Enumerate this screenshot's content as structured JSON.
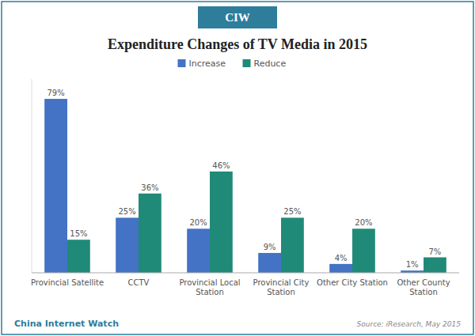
{
  "chart_data": {
    "type": "bar",
    "title": "Expenditure Changes of TV Media in 2015",
    "categories": [
      "Provincial Satellite",
      "CCTV",
      "Provincial Local\nStation",
      "Provincial City\nStation",
      "Other City Station",
      "Other County\nStation"
    ],
    "series": [
      {
        "name": "Increase",
        "color": "#4472C4",
        "values": [
          79,
          25,
          20,
          9,
          4,
          1
        ],
        "value_labels": [
          "79%",
          "25%",
          "20%",
          "9%",
          "4%",
          "1%"
        ]
      },
      {
        "name": "Reduce",
        "color": "#1F8A78",
        "values": [
          15,
          36,
          46,
          25,
          20,
          7
        ],
        "value_labels": [
          "15%",
          "36%",
          "46%",
          "25%",
          "20%",
          "7%"
        ]
      }
    ],
    "ylim": [
      0,
      88
    ],
    "grid": false,
    "legend": "top",
    "data_labels": true,
    "tick_labels": "x",
    "annotations": [
      "CIW",
      "China Internet Watch",
      "Source: iResearch, May 2015"
    ]
  }
}
